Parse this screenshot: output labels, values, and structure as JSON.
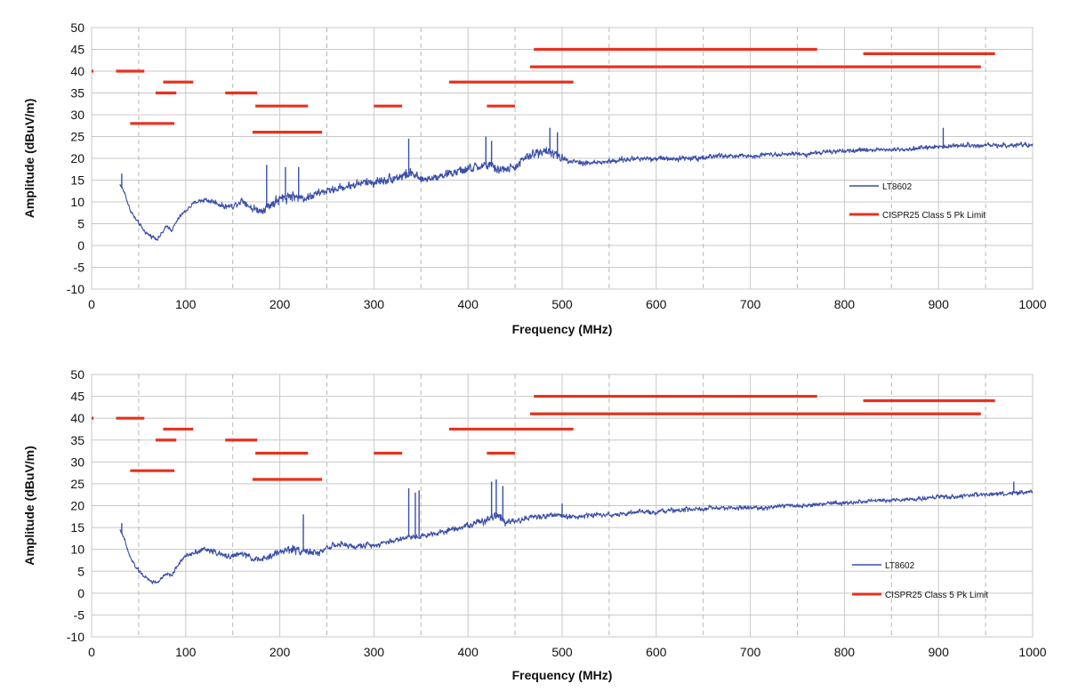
{
  "chart_data": [
    {
      "type": "line",
      "xlabel": "Frequency (MHz)",
      "ylabel": "Amplitude (dBuV/m)",
      "xlim": [
        0,
        1000
      ],
      "ylim": [
        -10,
        50
      ],
      "xticks": [
        0,
        100,
        200,
        300,
        400,
        500,
        600,
        700,
        800,
        900,
        1000
      ],
      "yticks": [
        -10,
        -5,
        0,
        5,
        10,
        15,
        20,
        25,
        30,
        35,
        40,
        45,
        50
      ],
      "grid": {
        "major_x": true,
        "minor_x_dashed": true,
        "major_y": true
      },
      "legend": {
        "position": "right"
      },
      "colors": {
        "emission": "#3a4ea8",
        "limit": "#e8321e"
      },
      "series": [
        {
          "name": "LT8602",
          "color": "#3a4ea8",
          "kind": "emission",
          "x": [
            30,
            35,
            40,
            45,
            50,
            55,
            60,
            65,
            70,
            75,
            80,
            85,
            90,
            95,
            100,
            110,
            120,
            130,
            140,
            150,
            160,
            170,
            180,
            190,
            200,
            210,
            220,
            230,
            240,
            250,
            260,
            270,
            280,
            290,
            300,
            310,
            320,
            330,
            340,
            350,
            360,
            370,
            380,
            390,
            400,
            410,
            420,
            430,
            440,
            450,
            460,
            470,
            480,
            490,
            500,
            510,
            520,
            540,
            560,
            580,
            600,
            620,
            640,
            660,
            680,
            700,
            720,
            740,
            760,
            780,
            800,
            820,
            840,
            860,
            880,
            900,
            920,
            940,
            960,
            980,
            1000
          ],
          "y": [
            14,
            12,
            8.5,
            6.5,
            5,
            3.5,
            2.5,
            2,
            1.5,
            3,
            4.5,
            3.5,
            5.5,
            7,
            8,
            10,
            10.5,
            10,
            9,
            9,
            10.5,
            8.5,
            8,
            9.5,
            10.5,
            11.5,
            11,
            11,
            12,
            12.5,
            13,
            13.5,
            14,
            14.5,
            14.5,
            15,
            15.5,
            16,
            16.5,
            15,
            15.5,
            16,
            16.5,
            17,
            17.5,
            18,
            18.5,
            17.5,
            17.5,
            18,
            20,
            21,
            22,
            21,
            20,
            19.5,
            19,
            19,
            19.5,
            20,
            20,
            20,
            20,
            20.5,
            20.5,
            20.5,
            21,
            21,
            21,
            21.5,
            21.5,
            22,
            22,
            22,
            22.5,
            22.5,
            23,
            23,
            23,
            23,
            23
          ],
          "noise": [
            0.5,
            1,
            1,
            1,
            1,
            1,
            1,
            1,
            1,
            1,
            1,
            1,
            1,
            1,
            1,
            1,
            1.5,
            1.5,
            1.5,
            1.5,
            2,
            2,
            2,
            3,
            3,
            3,
            2.5,
            2.5,
            2,
            2,
            2,
            2,
            2.5,
            2.5,
            2.5,
            2.5,
            2.5,
            3,
            2.5,
            2,
            2,
            2,
            2.5,
            2.5,
            2.5,
            2.5,
            3,
            3,
            2,
            2,
            2.5,
            2.5,
            3,
            2.5,
            2,
            1.5,
            1.5,
            1.5,
            1.5,
            1.5,
            1.5,
            1.5,
            1.5,
            1.5,
            1.2,
            1.2,
            1.2,
            1.2,
            1.2,
            1.2,
            1.2,
            1.2,
            1.2,
            1.2,
            1.2,
            1.2,
            1.2,
            1.2,
            1.2,
            1.2,
            1.2
          ],
          "spikes": [
            {
              "x": 32,
              "y": 16.5
            },
            {
              "x": 186,
              "y": 18.5
            },
            {
              "x": 206,
              "y": 18
            },
            {
              "x": 220,
              "y": 18
            },
            {
              "x": 337,
              "y": 24.5
            },
            {
              "x": 419,
              "y": 25
            },
            {
              "x": 425,
              "y": 24
            },
            {
              "x": 487,
              "y": 27
            },
            {
              "x": 495,
              "y": 26
            },
            {
              "x": 905,
              "y": 27
            }
          ]
        },
        {
          "name": "CISPR25 Class 5 Pk Limit",
          "color": "#e8321e",
          "kind": "limit",
          "segments": [
            {
              "x": [
                0,
                2
              ],
              "y": 40
            },
            {
              "x": [
                26,
                56
              ],
              "y": 40
            },
            {
              "x": [
                41,
                88
              ],
              "y": 28
            },
            {
              "x": [
                68,
                90
              ],
              "y": 35
            },
            {
              "x": [
                76,
                108
              ],
              "y": 37.5
            },
            {
              "x": [
                142,
                176
              ],
              "y": 35
            },
            {
              "x": [
                174,
                230
              ],
              "y": 32
            },
            {
              "x": [
                171,
                245
              ],
              "y": 26
            },
            {
              "x": [
                300,
                330
              ],
              "y": 32
            },
            {
              "x": [
                380,
                512
              ],
              "y": 37.5
            },
            {
              "x": [
                420,
                450
              ],
              "y": 32
            },
            {
              "x": [
                466,
                945
              ],
              "y": 41
            },
            {
              "x": [
                470,
                771
              ],
              "y": 45
            },
            {
              "x": [
                820,
                960
              ],
              "y": 44
            }
          ]
        }
      ]
    },
    {
      "type": "line",
      "xlabel": "Frequency (MHz)",
      "ylabel": "Amplitude (dBuV/m)",
      "xlim": [
        0,
        1000
      ],
      "ylim": [
        -10,
        50
      ],
      "xticks": [
        0,
        100,
        200,
        300,
        400,
        500,
        600,
        700,
        800,
        900,
        1000
      ],
      "yticks": [
        -10,
        -5,
        0,
        5,
        10,
        15,
        20,
        25,
        30,
        35,
        40,
        45,
        50
      ],
      "grid": {
        "major_x": true,
        "minor_x_dashed": true,
        "major_y": true
      },
      "legend": {
        "position": "right"
      },
      "colors": {
        "emission": "#3a4ea8",
        "limit": "#e8321e"
      },
      "series": [
        {
          "name": "LT8602",
          "color": "#3a4ea8",
          "kind": "emission",
          "x": [
            30,
            35,
            40,
            45,
            50,
            55,
            60,
            65,
            70,
            75,
            80,
            85,
            90,
            95,
            100,
            110,
            120,
            130,
            140,
            150,
            160,
            170,
            180,
            190,
            200,
            210,
            220,
            230,
            240,
            250,
            260,
            270,
            280,
            290,
            300,
            310,
            320,
            330,
            340,
            350,
            360,
            370,
            380,
            390,
            400,
            410,
            420,
            430,
            440,
            450,
            460,
            470,
            480,
            490,
            500,
            520,
            540,
            560,
            580,
            600,
            620,
            640,
            660,
            680,
            700,
            720,
            740,
            760,
            780,
            800,
            820,
            840,
            860,
            880,
            900,
            920,
            940,
            960,
            980,
            1000
          ],
          "y": [
            14.5,
            12,
            8.5,
            6.5,
            5,
            4,
            3,
            2.5,
            2.5,
            3.5,
            4.5,
            4,
            6,
            7.5,
            8.5,
            9.5,
            10,
            9.5,
            8.5,
            8.5,
            9,
            8,
            7.5,
            8.5,
            9.5,
            10,
            10,
            9.5,
            9,
            10.5,
            11,
            11,
            10.5,
            11,
            11,
            11.5,
            12,
            12.5,
            13,
            13,
            13.5,
            14,
            14.5,
            15,
            15.5,
            16,
            17,
            18,
            16.5,
            16.5,
            17,
            17.5,
            17.5,
            18,
            17.5,
            17.5,
            18,
            18,
            18.5,
            18.5,
            19,
            19,
            19.5,
            19.5,
            19.5,
            19.5,
            20,
            20,
            20.5,
            20.5,
            21,
            21,
            21.5,
            21.5,
            22,
            22,
            22.5,
            22.5,
            23,
            23
          ],
          "noise": [
            0.5,
            1,
            1,
            1,
            1,
            1,
            1,
            1,
            1,
            1,
            1,
            1,
            1,
            1,
            1,
            1.5,
            1.5,
            1.5,
            1.5,
            1.5,
            1.5,
            1.5,
            1.5,
            2,
            2,
            2.5,
            2.5,
            2,
            1.5,
            1.5,
            1.5,
            1.5,
            1.5,
            1.5,
            1.5,
            1.5,
            1.5,
            1.5,
            1.5,
            1.5,
            1.5,
            1.5,
            1.5,
            1.5,
            1.5,
            2,
            2.5,
            3,
            2,
            1.5,
            1.5,
            1.5,
            1.5,
            1.5,
            1.5,
            1.5,
            1.2,
            1.2,
            1.2,
            1.2,
            1.2,
            1.2,
            1.2,
            1.2,
            1.2,
            1.2,
            1.2,
            1.2,
            1.2,
            1.2,
            1.2,
            1.2,
            1.2,
            1.2,
            1.2,
            1.2,
            1.2,
            1.2,
            1.2,
            1.2
          ],
          "spikes": [
            {
              "x": 32,
              "y": 16
            },
            {
              "x": 225,
              "y": 18
            },
            {
              "x": 337,
              "y": 24
            },
            {
              "x": 344,
              "y": 23
            },
            {
              "x": 348,
              "y": 23.5
            },
            {
              "x": 425,
              "y": 25.5
            },
            {
              "x": 430,
              "y": 26
            },
            {
              "x": 437,
              "y": 24.5
            },
            {
              "x": 500,
              "y": 20.5
            },
            {
              "x": 980,
              "y": 25.5
            }
          ]
        },
        {
          "name": "CISPR25 Class 5 Pk Limit",
          "color": "#e8321e",
          "kind": "limit",
          "segments": [
            {
              "x": [
                0,
                2
              ],
              "y": 40
            },
            {
              "x": [
                26,
                56
              ],
              "y": 40
            },
            {
              "x": [
                41,
                88
              ],
              "y": 28
            },
            {
              "x": [
                68,
                90
              ],
              "y": 35
            },
            {
              "x": [
                76,
                108
              ],
              "y": 37.5
            },
            {
              "x": [
                142,
                176
              ],
              "y": 35
            },
            {
              "x": [
                174,
                230
              ],
              "y": 32
            },
            {
              "x": [
                171,
                245
              ],
              "y": 26
            },
            {
              "x": [
                300,
                330
              ],
              "y": 32
            },
            {
              "x": [
                380,
                512
              ],
              "y": 37.5
            },
            {
              "x": [
                420,
                450
              ],
              "y": 32
            },
            {
              "x": [
                466,
                945
              ],
              "y": 41
            },
            {
              "x": [
                470,
                771
              ],
              "y": 45
            },
            {
              "x": [
                820,
                960
              ],
              "y": 44
            }
          ]
        }
      ]
    }
  ]
}
